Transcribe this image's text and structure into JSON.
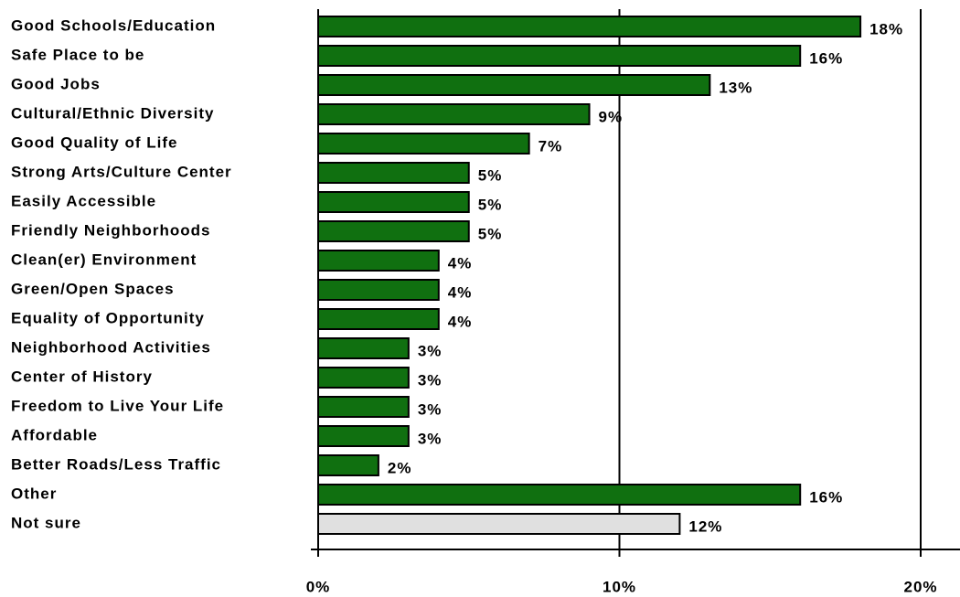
{
  "chart_data": {
    "type": "barh",
    "categories": [
      "Good Schools/Education",
      "Safe Place to be",
      "Good Jobs",
      "Cultural/Ethnic Diversity",
      "Good Quality of Life",
      "Strong Arts/Culture Center",
      "Easily Accessible",
      "Friendly Neighborhoods",
      "Clean(er) Environment",
      "Green/Open Spaces",
      "Equality of Opportunity",
      "Neighborhood Activities",
      "Center of History",
      "Freedom to Live Your Life",
      "Affordable",
      "Better Roads/Less Traffic",
      "Other",
      "Not sure"
    ],
    "values": [
      18,
      16,
      13,
      9,
      7,
      5,
      5,
      5,
      4,
      4,
      4,
      3,
      3,
      3,
      3,
      2,
      16,
      12
    ],
    "value_labels": [
      "18%",
      "16%",
      "13%",
      "9%",
      "7%",
      "5%",
      "5%",
      "5%",
      "4%",
      "4%",
      "4%",
      "3%",
      "3%",
      "3%",
      "3%",
      "2%",
      "16%",
      "12%"
    ],
    "colors": [
      "#107010",
      "#107010",
      "#107010",
      "#107010",
      "#107010",
      "#107010",
      "#107010",
      "#107010",
      "#107010",
      "#107010",
      "#107010",
      "#107010",
      "#107010",
      "#107010",
      "#107010",
      "#107010",
      "#107010",
      "#e0e0e0"
    ],
    "xlim": [
      0,
      21.4
    ],
    "xticks": [
      {
        "value": 0,
        "label": "0%"
      },
      {
        "value": 10,
        "label": "10%"
      },
      {
        "value": 20,
        "label": "20%"
      }
    ],
    "grid": true
  }
}
